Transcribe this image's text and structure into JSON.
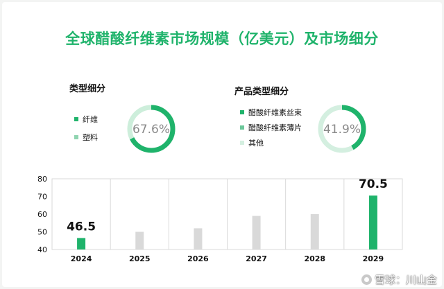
{
  "title": "全球醋酸纤维素市场规模（亿美元）及市场细分",
  "left_panel": {
    "heading": "类型细分",
    "legend": [
      {
        "label": "纤维",
        "color": "#1fb36b"
      },
      {
        "label": "塑料",
        "color": "#8fd4b0"
      }
    ],
    "donut": {
      "value": 0.676,
      "label": "67.6%",
      "color": "#1fb36b",
      "track": "#cdeedb"
    }
  },
  "right_panel": {
    "heading": "产品类型细分",
    "legend": [
      {
        "label": "醋酸纤维素丝束",
        "color": "#1fb36b"
      },
      {
        "label": "醋酸纤维素薄片",
        "color": "#6cc79a"
      },
      {
        "label": "其他",
        "color": "#d4efe0"
      }
    ],
    "donut": {
      "value": 0.419,
      "label": "41.9%",
      "color": "#1fb36b",
      "track": "#d4efe0"
    }
  },
  "chart_data": {
    "type": "bar",
    "categories": [
      "2024",
      "2025",
      "2026",
      "2027",
      "2028",
      "2029"
    ],
    "values": [
      46.5,
      50,
      52,
      59,
      60,
      70.5
    ],
    "labels": [
      "46.5",
      "",
      "",
      "",
      "",
      "70.5"
    ],
    "highlight_color": "#1fb36b",
    "base_color": "#d9d9d9",
    "highlight_indices": [
      0,
      5
    ],
    "ylim": [
      40,
      80
    ],
    "yticks": [
      40,
      50,
      60,
      70,
      80
    ],
    "grid": "vertical"
  },
  "watermark": "雪球：川山金"
}
